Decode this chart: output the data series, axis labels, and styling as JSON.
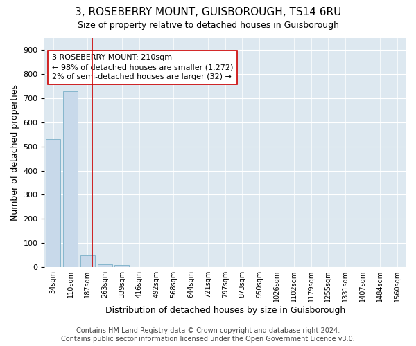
{
  "title": "3, ROSEBERRY MOUNT, GUISBOROUGH, TS14 6RU",
  "subtitle": "Size of property relative to detached houses in Guisborough",
  "xlabel": "Distribution of detached houses by size in Guisborough",
  "ylabel": "Number of detached properties",
  "bar_labels": [
    "34sqm",
    "110sqm",
    "187sqm",
    "263sqm",
    "339sqm",
    "416sqm",
    "492sqm",
    "568sqm",
    "644sqm",
    "721sqm",
    "797sqm",
    "873sqm",
    "950sqm",
    "1026sqm",
    "1102sqm",
    "1179sqm",
    "1255sqm",
    "1331sqm",
    "1407sqm",
    "1484sqm",
    "1560sqm"
  ],
  "bar_values": [
    530,
    728,
    49,
    12,
    9,
    0,
    0,
    0,
    0,
    0,
    0,
    0,
    0,
    0,
    0,
    0,
    0,
    0,
    0,
    0,
    0
  ],
  "bar_color": "#c8d9ea",
  "bar_edgecolor": "#7aafc8",
  "property_line_x": 2.27,
  "property_line_color": "#cc0000",
  "annotation_text": "3 ROSEBERRY MOUNT: 210sqm\n← 98% of detached houses are smaller (1,272)\n2% of semi-detached houses are larger (32) →",
  "annotation_box_color": "#ffffff",
  "annotation_box_edgecolor": "#cc0000",
  "ylim": [
    0,
    950
  ],
  "yticks": [
    0,
    100,
    200,
    300,
    400,
    500,
    600,
    700,
    800,
    900
  ],
  "footer": "Contains HM Land Registry data © Crown copyright and database right 2024.\nContains public sector information licensed under the Open Government Licence v3.0.",
  "fig_facecolor": "#ffffff",
  "axes_facecolor": "#dde8f0",
  "title_fontsize": 11,
  "subtitle_fontsize": 9,
  "annotation_fontsize": 8,
  "footer_fontsize": 7,
  "ylabel_fontsize": 9,
  "xlabel_fontsize": 9
}
